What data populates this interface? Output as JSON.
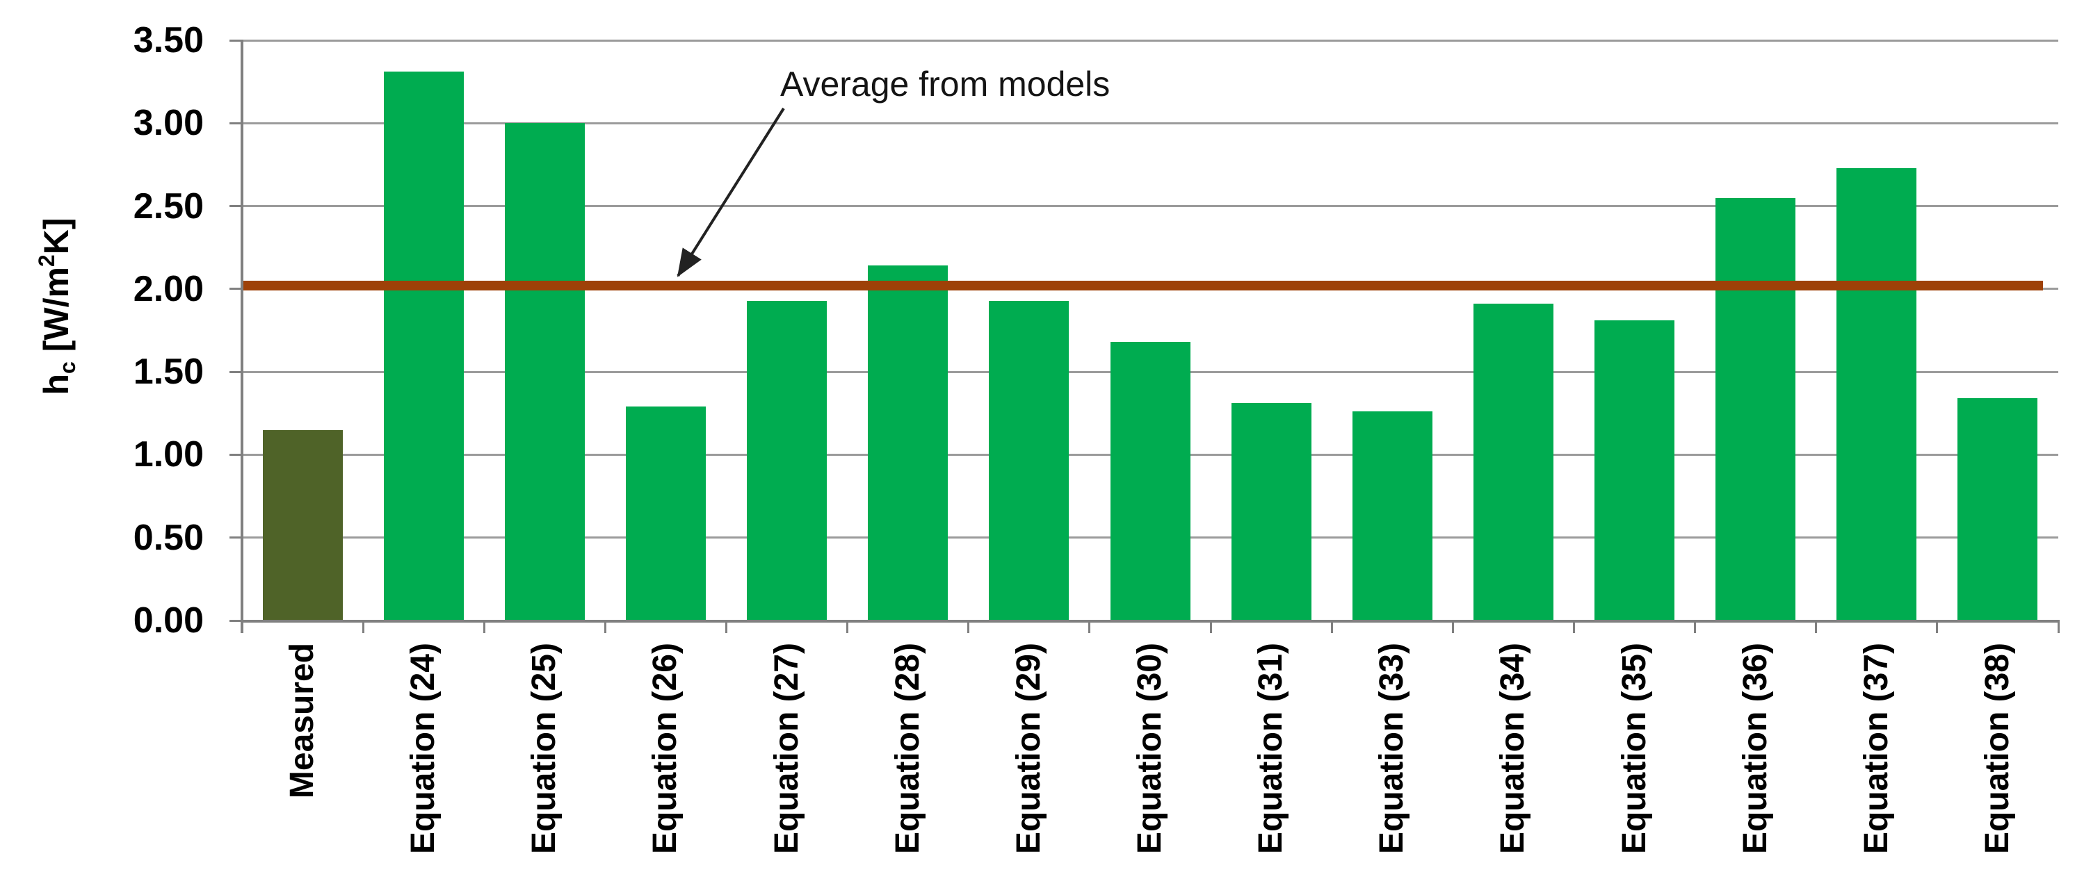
{
  "chart_data": {
    "type": "bar",
    "title": "",
    "ylabel": "hc [W/m2K]",
    "ylabel_parts": {
      "base": "h",
      "sub": "c",
      "mid": " [W/m",
      "sup": "2",
      "end": "K]"
    },
    "xlabel": "",
    "categories": [
      "Measured",
      "Equation (24)",
      "Equation (25)",
      "Equation (26)",
      "Equation (27)",
      "Equation (28)",
      "Equation (29)",
      "Equation (30)",
      "Equation (31)",
      "Equation (33)",
      "Equation (34)",
      "Equation (35)",
      "Equation (36)",
      "Equation (37)",
      "Equation (38)"
    ],
    "values": [
      1.15,
      3.31,
      3.0,
      1.29,
      1.93,
      2.14,
      1.93,
      1.68,
      1.31,
      1.26,
      1.91,
      1.81,
      2.55,
      2.73,
      1.34
    ],
    "ylim": [
      0,
      3.5
    ],
    "ytick_step": 0.5,
    "ytick_labels": [
      "0.00",
      "0.50",
      "1.00",
      "1.50",
      "2.00",
      "2.50",
      "3.00",
      "3.50"
    ],
    "grid": "horizontal",
    "legend": "none",
    "average_line": {
      "value": 2.02,
      "label": "Average from models"
    },
    "colors": {
      "measured_bar": "#4F6328",
      "model_bar": "#00AC50",
      "average_line": "#9E4108",
      "gridline": "#9B9B9B",
      "axis": "#808080",
      "text": "#000000",
      "annotation_text": "#141414",
      "arrow": "#222222",
      "background": "#FFFFFF"
    }
  }
}
